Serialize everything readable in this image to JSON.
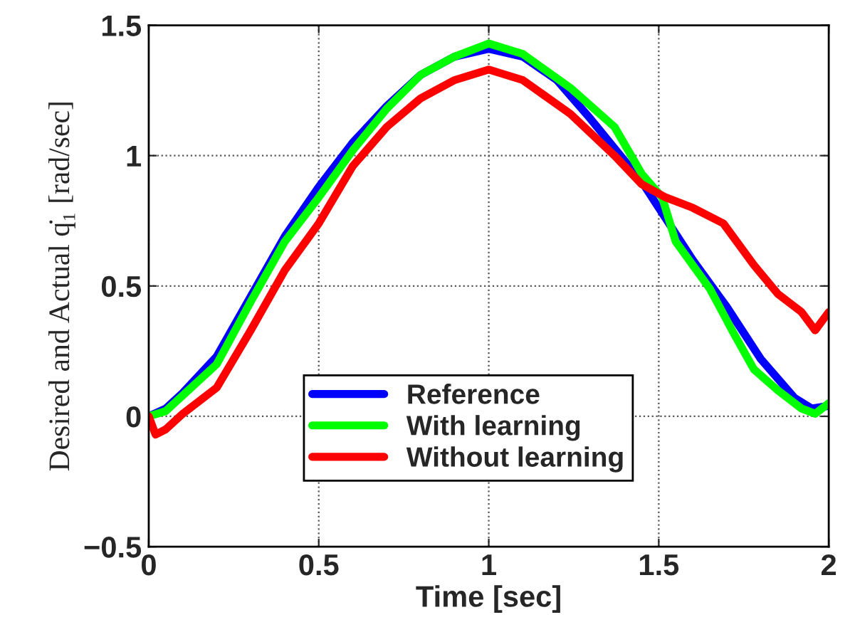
{
  "chart_data": {
    "type": "line",
    "xlabel": "Time [sec]",
    "ylabel": "Desired and Actual q̇₁ [rad/sec]",
    "xlim": [
      0,
      2
    ],
    "xticks": [
      0,
      0.5,
      1,
      1.5,
      2
    ],
    "ylim": [
      -0.5,
      1.5
    ],
    "yticks": [
      {
        "value": -0.5,
        "label": "−0.5"
      },
      0,
      0.5,
      1,
      1.5
    ],
    "grid": true,
    "legend": "bottom",
    "marker": "none",
    "line_style": "solid",
    "series": [
      {
        "name": "Reference",
        "color": "#0000ff",
        "x": [
          0,
          0.05,
          0.1,
          0.2,
          0.3,
          0.4,
          0.5,
          0.6,
          0.7,
          0.8,
          0.9,
          1.0,
          1.1,
          1.2,
          1.3,
          1.4,
          1.45,
          1.5,
          1.55,
          1.6,
          1.7,
          1.8,
          1.9,
          1.95,
          2.0
        ],
        "values": [
          0,
          0.03,
          0.09,
          0.23,
          0.46,
          0.69,
          0.88,
          1.05,
          1.19,
          1.31,
          1.38,
          1.41,
          1.38,
          1.29,
          1.14,
          0.98,
          0.9,
          0.8,
          0.7,
          0.6,
          0.42,
          0.22,
          0.07,
          0.03,
          0.04
        ]
      },
      {
        "name": "With learning",
        "color": "#00ff00",
        "x": [
          0,
          0.05,
          0.1,
          0.2,
          0.3,
          0.4,
          0.5,
          0.6,
          0.7,
          0.8,
          0.9,
          1.0,
          1.1,
          1.24,
          1.37,
          1.45,
          1.51,
          1.55,
          1.65,
          1.72,
          1.78,
          1.85,
          1.92,
          1.96,
          2.0
        ],
        "values": [
          0,
          0.02,
          0.08,
          0.2,
          0.44,
          0.67,
          0.84,
          1.02,
          1.18,
          1.31,
          1.38,
          1.43,
          1.39,
          1.26,
          1.11,
          0.93,
          0.84,
          0.67,
          0.49,
          0.32,
          0.18,
          0.1,
          0.03,
          0.01,
          0.05
        ]
      },
      {
        "name": "Without learning",
        "color": "#ff0000",
        "x": [
          0,
          0.02,
          0.05,
          0.1,
          0.2,
          0.3,
          0.4,
          0.5,
          0.6,
          0.7,
          0.8,
          0.9,
          1.0,
          1.1,
          1.24,
          1.37,
          1.45,
          1.52,
          1.6,
          1.69,
          1.78,
          1.85,
          1.92,
          1.96,
          2.0
        ],
        "values": [
          0,
          -0.07,
          -0.05,
          0.01,
          0.11,
          0.33,
          0.56,
          0.74,
          0.96,
          1.11,
          1.22,
          1.29,
          1.33,
          1.29,
          1.16,
          1.0,
          0.89,
          0.84,
          0.8,
          0.74,
          0.58,
          0.47,
          0.4,
          0.33,
          0.4
        ]
      }
    ]
  }
}
